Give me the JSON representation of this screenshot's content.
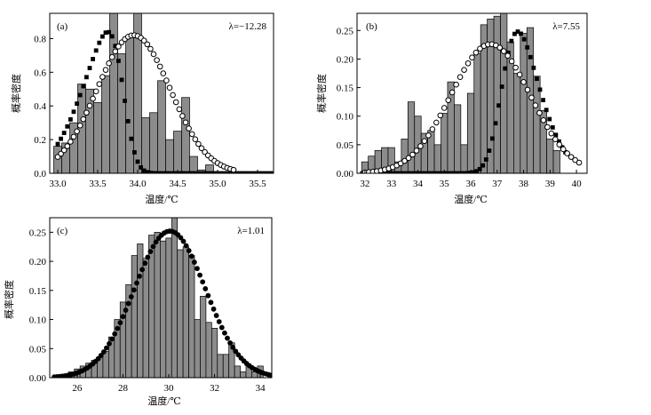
{
  "chart_data": [
    {
      "type": "bar",
      "panel_label": "(a)",
      "lambda_text": "λ=−12.28",
      "xlabel": "温度/℃",
      "ylabel": "概率密度",
      "xlim": [
        32.9,
        35.7
      ],
      "ylim": [
        0,
        0.95
      ],
      "xticks": [
        33.0,
        33.5,
        34.0,
        34.5,
        35.0,
        35.5
      ],
      "xtick_labels": [
        "33.0",
        "33.5",
        "34.0",
        "34.5",
        "35.0",
        "35.5"
      ],
      "yticks": [
        0.0,
        0.2,
        0.4,
        0.6,
        0.8
      ],
      "ytick_labels": [
        "0.0",
        "0.2",
        "0.4",
        "0.6",
        "0.8"
      ],
      "grid": false,
      "bin_width": 0.1,
      "bars": [
        {
          "x": 33.0,
          "y": 0.16
        },
        {
          "x": 33.1,
          "y": 0.18
        },
        {
          "x": 33.2,
          "y": 0.3
        },
        {
          "x": 33.3,
          "y": 0.53
        },
        {
          "x": 33.4,
          "y": 0.5
        },
        {
          "x": 33.5,
          "y": 0.42
        },
        {
          "x": 33.6,
          "y": 0.58
        },
        {
          "x": 33.7,
          "y": 0.95
        },
        {
          "x": 33.8,
          "y": 0.71
        },
        {
          "x": 33.9,
          "y": 0.81
        },
        {
          "x": 34.0,
          "y": 0.95
        },
        {
          "x": 34.1,
          "y": 0.33
        },
        {
          "x": 34.2,
          "y": 0.36
        },
        {
          "x": 34.3,
          "y": 0.55
        },
        {
          "x": 34.4,
          "y": 0.2
        },
        {
          "x": 34.5,
          "y": 0.25
        },
        {
          "x": 34.6,
          "y": 0.45
        },
        {
          "x": 34.7,
          "y": 0.1
        },
        {
          "x": 34.8,
          "y": 0.02
        },
        {
          "x": 34.9,
          "y": 0.05
        }
      ],
      "curves": [
        {
          "marker": "filled-square",
          "mean": 33.82,
          "sd": 0.44,
          "peak": 0.84,
          "skew": -3.5,
          "xmin": 33.0,
          "xmax": 35.7,
          "step": 0.04
        },
        {
          "marker": "open-circle",
          "mean": 33.95,
          "sd": 0.46,
          "peak": 0.82,
          "skew": 0,
          "xmin": 33.0,
          "xmax": 35.2,
          "step": 0.04
        }
      ]
    },
    {
      "type": "bar",
      "panel_label": "(b)",
      "lambda_text": "λ=7.55",
      "xlabel": "温度/℃",
      "ylabel": "概率密度",
      "xlim": [
        31.7,
        40.4
      ],
      "ylim": [
        0,
        0.28
      ],
      "xticks": [
        32,
        33,
        34,
        35,
        36,
        37,
        38,
        39,
        40
      ],
      "xtick_labels": [
        "32",
        "33",
        "34",
        "35",
        "36",
        "37",
        "38",
        "39",
        "40"
      ],
      "yticks": [
        0.0,
        0.05,
        0.1,
        0.15,
        0.2,
        0.25
      ],
      "ytick_labels": [
        "0.00",
        "0.05",
        "0.10",
        "0.15",
        "0.20",
        "0.25"
      ],
      "grid": false,
      "bin_width": 0.25,
      "bars": [
        {
          "x": 32.0,
          "y": 0.02
        },
        {
          "x": 32.25,
          "y": 0.03
        },
        {
          "x": 32.5,
          "y": 0.04
        },
        {
          "x": 32.75,
          "y": 0.045
        },
        {
          "x": 33.0,
          "y": 0.045
        },
        {
          "x": 33.25,
          "y": 0.02
        },
        {
          "x": 33.5,
          "y": 0.06
        },
        {
          "x": 33.75,
          "y": 0.125
        },
        {
          "x": 34.0,
          "y": 0.1
        },
        {
          "x": 34.25,
          "y": 0.07
        },
        {
          "x": 34.5,
          "y": 0.075
        },
        {
          "x": 34.75,
          "y": 0.05
        },
        {
          "x": 35.0,
          "y": 0.105
        },
        {
          "x": 35.25,
          "y": 0.16
        },
        {
          "x": 35.5,
          "y": 0.12
        },
        {
          "x": 35.75,
          "y": 0.05
        },
        {
          "x": 36.0,
          "y": 0.14
        },
        {
          "x": 36.25,
          "y": 0.21
        },
        {
          "x": 36.5,
          "y": 0.26
        },
        {
          "x": 36.75,
          "y": 0.27
        },
        {
          "x": 37.0,
          "y": 0.275
        },
        {
          "x": 37.25,
          "y": 0.28
        },
        {
          "x": 37.5,
          "y": 0.23
        },
        {
          "x": 37.75,
          "y": 0.175
        },
        {
          "x": 38.0,
          "y": 0.245
        },
        {
          "x": 38.25,
          "y": 0.255
        },
        {
          "x": 38.5,
          "y": 0.17
        },
        {
          "x": 38.75,
          "y": 0.11
        },
        {
          "x": 39.0,
          "y": 0.06
        },
        {
          "x": 39.25,
          "y": 0.04
        }
      ],
      "curves": [
        {
          "marker": "filled-square",
          "mean": 37.2,
          "sd": 1.15,
          "peak": 0.248,
          "skew": 2.5,
          "xmin": 31.9,
          "xmax": 39.6,
          "step": 0.12
        },
        {
          "marker": "open-circle",
          "mean": 36.75,
          "sd": 1.5,
          "peak": 0.226,
          "skew": 0,
          "xmin": 32.0,
          "xmax": 40.2,
          "step": 0.15
        }
      ]
    },
    {
      "type": "bar",
      "panel_label": "(c)",
      "lambda_text": "λ=1.01",
      "xlabel": "温度/℃",
      "ylabel": "概率密度",
      "xlim": [
        24.8,
        34.5
      ],
      "ylim": [
        0,
        0.275
      ],
      "xticks": [
        26,
        28,
        30,
        32,
        34
      ],
      "xtick_labels": [
        "26",
        "28",
        "30",
        "32",
        "34"
      ],
      "yticks": [
        0.0,
        0.05,
        0.1,
        0.15,
        0.2,
        0.25
      ],
      "ytick_labels": [
        "0.00",
        "0.05",
        "0.10",
        "0.15",
        "0.20",
        "0.25"
      ],
      "grid": false,
      "bin_width": 0.25,
      "bars": [
        {
          "x": 25.5,
          "y": 0.005
        },
        {
          "x": 25.75,
          "y": 0.01
        },
        {
          "x": 26.0,
          "y": 0.015
        },
        {
          "x": 26.25,
          "y": 0.02
        },
        {
          "x": 26.5,
          "y": 0.025
        },
        {
          "x": 26.75,
          "y": 0.03
        },
        {
          "x": 27.0,
          "y": 0.035
        },
        {
          "x": 27.25,
          "y": 0.045
        },
        {
          "x": 27.5,
          "y": 0.07
        },
        {
          "x": 27.75,
          "y": 0.1
        },
        {
          "x": 28.0,
          "y": 0.13
        },
        {
          "x": 28.25,
          "y": 0.16
        },
        {
          "x": 28.5,
          "y": 0.21
        },
        {
          "x": 28.75,
          "y": 0.23
        },
        {
          "x": 29.0,
          "y": 0.205
        },
        {
          "x": 29.25,
          "y": 0.245
        },
        {
          "x": 29.5,
          "y": 0.25
        },
        {
          "x": 29.75,
          "y": 0.235
        },
        {
          "x": 30.0,
          "y": 0.24
        },
        {
          "x": 30.25,
          "y": 0.275
        },
        {
          "x": 30.5,
          "y": 0.22
        },
        {
          "x": 30.75,
          "y": 0.225
        },
        {
          "x": 31.0,
          "y": 0.21
        },
        {
          "x": 31.25,
          "y": 0.1
        },
        {
          "x": 31.5,
          "y": 0.14
        },
        {
          "x": 31.75,
          "y": 0.095
        },
        {
          "x": 32.0,
          "y": 0.085
        },
        {
          "x": 32.25,
          "y": 0.04
        },
        {
          "x": 32.5,
          "y": 0.04
        },
        {
          "x": 32.75,
          "y": 0.06
        },
        {
          "x": 33.0,
          "y": 0.02
        },
        {
          "x": 33.25,
          "y": 0.01
        },
        {
          "x": 33.5,
          "y": 0.02
        },
        {
          "x": 33.75,
          "y": 0.01
        },
        {
          "x": 34.0,
          "y": 0.02
        }
      ],
      "curves": [
        {
          "marker": "filled-circle",
          "mean": 30.05,
          "sd": 1.55,
          "peak": 0.252,
          "skew": 0,
          "xmin": 25.0,
          "xmax": 34.5,
          "step": 0.12
        }
      ]
    }
  ]
}
